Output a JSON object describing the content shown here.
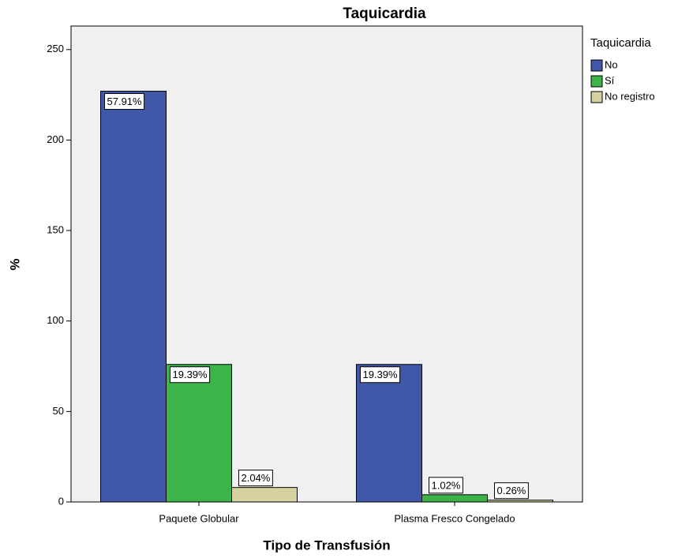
{
  "chart_data": {
    "type": "bar",
    "title": "Taquicardia",
    "x_label": "Tipo de Transfusión",
    "y_label": "%",
    "legend_title": "Taquicardia",
    "legend_position": "right",
    "categories": [
      "Paquete Globular",
      "Plasma Fresco Congelado"
    ],
    "series": [
      {
        "name": "No",
        "color": "#3f58a8",
        "values": [
          227,
          76
        ],
        "value_labels": [
          "57.91%",
          "19.39%"
        ]
      },
      {
        "name": "Sí",
        "color": "#3cb44a",
        "values": [
          76,
          4
        ],
        "value_labels": [
          "19.39%",
          "1.02%"
        ]
      },
      {
        "name": "No registro",
        "color": "#d6d1a0",
        "values": [
          8,
          1
        ],
        "value_labels": [
          "2.04%",
          "0.26%"
        ]
      }
    ],
    "ylim": [
      0,
      263
    ],
    "yticks": [
      0,
      50,
      100,
      150,
      200,
      250
    ]
  }
}
